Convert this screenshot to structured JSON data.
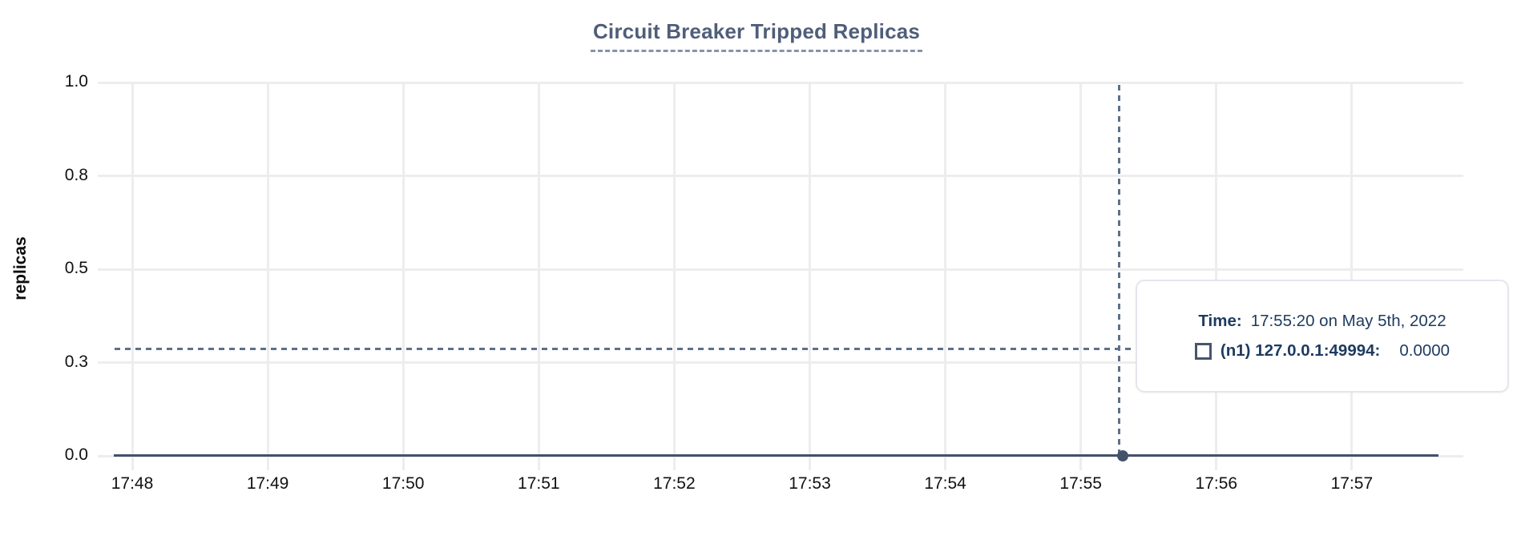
{
  "chart": {
    "title": "Circuit Breaker Tripped Replicas",
    "y_axis_label": "replicas"
  },
  "tooltip": {
    "time_label": "Time:",
    "time_value": "17:55:20 on May 5th, 2022",
    "series_label": "(n1) 127.0.0.1:49994:",
    "series_value": "0.0000"
  },
  "colors": {
    "title": "#4f5e7a",
    "title_underline": "#8594ab",
    "grid": "#ededed",
    "series_line": "#44526a",
    "crosshair": "#5d7189",
    "tooltip_text": "#1d3b5f",
    "tooltip_border": "#e4e6ec",
    "swatch_border": "#47566e",
    "tick_text": "#111111"
  },
  "chart_data": {
    "type": "line",
    "title": "Circuit Breaker Tripped Replicas",
    "xlabel": "",
    "ylabel": "replicas",
    "ylim": [
      0.0,
      1.0
    ],
    "grid": true,
    "legend_position": "none (hover tooltip only)",
    "x_tick_labels": [
      "17:48",
      "17:49",
      "17:50",
      "17:51",
      "17:52",
      "17:53",
      "17:54",
      "17:55",
      "17:56",
      "17:57"
    ],
    "y_tick_values": [
      1.0,
      0.75,
      0.5,
      0.25,
      0.0
    ],
    "y_tick_labels": [
      "1.0",
      "0.8",
      "0.5",
      "0.3",
      "0.0"
    ],
    "series": [
      {
        "name": "(n1) 127.0.0.1:49994",
        "color": "#44526a",
        "x": [
          "17:48",
          "17:49",
          "17:50",
          "17:51",
          "17:52",
          "17:53",
          "17:54",
          "17:55",
          "17:56",
          "17:57"
        ],
        "values": [
          0,
          0,
          0,
          0,
          0,
          0,
          0,
          0,
          0,
          0
        ],
        "span_note": "constant 0 from ~17:47:50 to ~17:57:39"
      }
    ],
    "hover": {
      "time": "17:55:20 on May 5th, 2022",
      "hovered_x": "17:55:20",
      "hovered_series_value": 0.0,
      "marker_y_value": 0.0
    }
  }
}
